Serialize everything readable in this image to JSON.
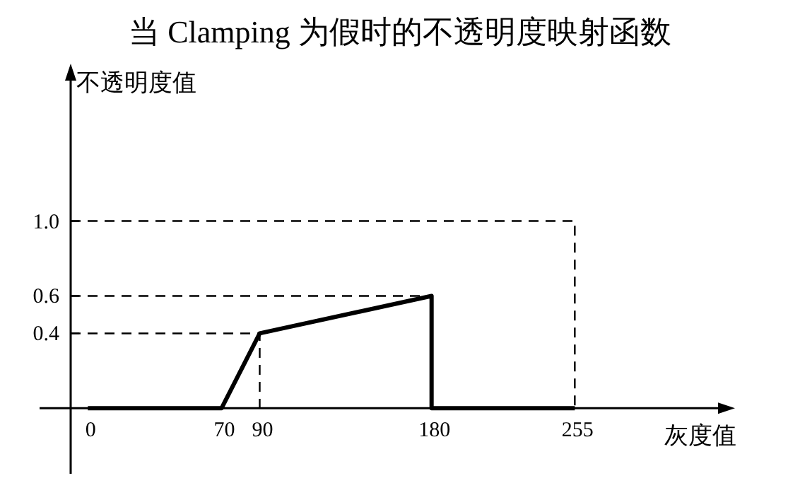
{
  "chart_data": {
    "type": "line",
    "title": "当 Clamping 为假时的不透明度映射函数",
    "xlabel": "灰度值",
    "ylabel": "不透明度值",
    "xlim": [
      -9,
      330
    ],
    "ylim": [
      -0.35,
      1.75
    ],
    "xticks": [
      0,
      70,
      90,
      180,
      255
    ],
    "yticks": [
      0.4,
      0.6,
      {
        "value": 1.0,
        "label": "1.0"
      }
    ],
    "grid": false,
    "marker": "none",
    "series": [
      {
        "color": "#000000",
        "line_style": "solid",
        "x": [
          0,
          70,
          90,
          180,
          180,
          255
        ],
        "values": [
          0,
          0,
          0.4,
          0.6,
          0,
          0
        ]
      },
      {
        "color": "#000000",
        "line_style": "dashed",
        "x": [
          -9,
          255,
          255
        ],
        "values": [
          1.0,
          1.0,
          0
        ]
      },
      {
        "color": "#000000",
        "line_style": "dashed",
        "x": [
          -9,
          180
        ],
        "values": [
          0.6,
          0.6
        ]
      },
      {
        "color": "#000000",
        "line_style": "dashed",
        "x": [
          -9,
          90,
          90
        ],
        "values": [
          0.4,
          0.4,
          0
        ]
      }
    ]
  }
}
